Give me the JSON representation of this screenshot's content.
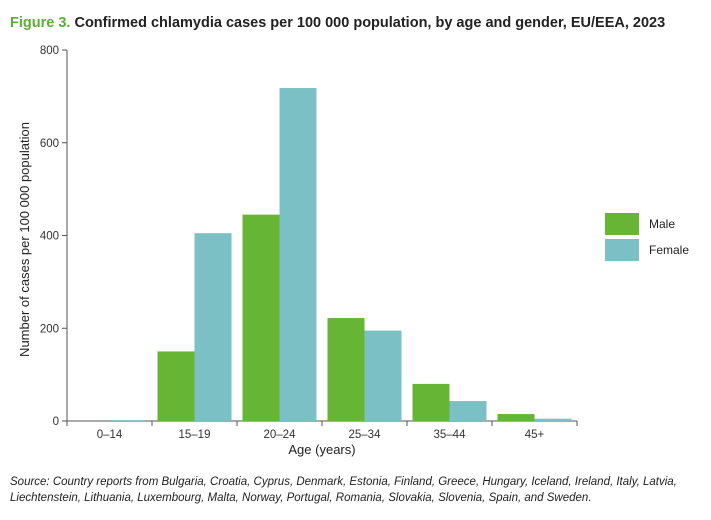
{
  "figure": {
    "prefix": "Figure 3.",
    "title": "Confirmed chlamydia cases per 100 000 population, by age and gender, EU/EEA, 2023",
    "source": "Source: Country reports from Bulgaria, Croatia, Cyprus, Denmark, Estonia, Finland, Greece, Hungary, Iceland, Ireland, Italy, Latvia, Liechtenstein, Lithuania, Luxembourg, Malta, Norway, Portugal, Romania, Slovakia, Slovenia, Spain, and Sweden."
  },
  "colors": {
    "male": "#66b534",
    "female": "#7ac0c5",
    "axis": "#555555",
    "text": "#333333"
  },
  "chart_data": {
    "type": "bar",
    "categories": [
      "0–14",
      "15–19",
      "20–24",
      "25–34",
      "35–44",
      "45+"
    ],
    "series": [
      {
        "name": "Male",
        "values": [
          0,
          150,
          445,
          222,
          80,
          15
        ]
      },
      {
        "name": "Female",
        "values": [
          2,
          405,
          718,
          195,
          43,
          5
        ]
      }
    ],
    "xlabel": "Age (years)",
    "ylabel": "Number of cases per 100 000 population",
    "ylim": [
      0,
      800
    ],
    "yticks": [
      0,
      200,
      400,
      600,
      800
    ],
    "grid": false,
    "legend_position": "right"
  }
}
